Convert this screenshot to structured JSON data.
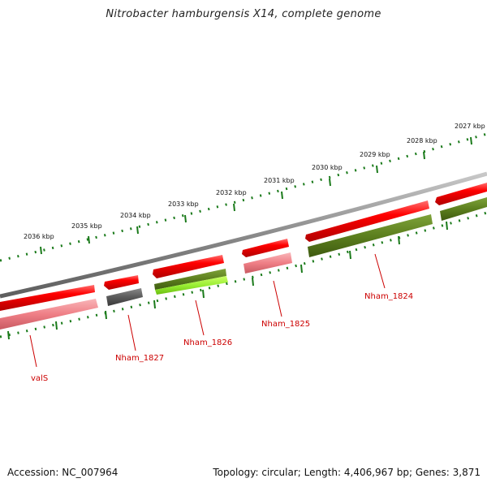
{
  "title": "Nitrobacter hamburgensis X14, complete genome",
  "footer": {
    "accession": "Accession: NC_007964",
    "summary": "Topology: circular; Length: 4,406,967 bp; Genes: 3,871"
  },
  "colors": {
    "backbone": "#8a8a8a",
    "tick": "#1a7a1a",
    "gene_red": "#ff0000",
    "gene_red_light": "#f4898f",
    "gene_gray": "#606060",
    "gene_olive": "#5c7f1e",
    "gene_lime": "#99ee33",
    "label": "#cc0000"
  },
  "scale_labels": [
    "2027 kbp",
    "2028 kbp",
    "2029 kbp",
    "2030 kbp",
    "2031 kbp",
    "2032 kbp",
    "2033 kbp",
    "2034 kbp",
    "2035 kbp",
    "2036 kbp"
  ],
  "gene_labels": [
    "valS",
    "Nham_1827",
    "Nham_1826",
    "Nham_1825",
    "Nham_1824"
  ]
}
